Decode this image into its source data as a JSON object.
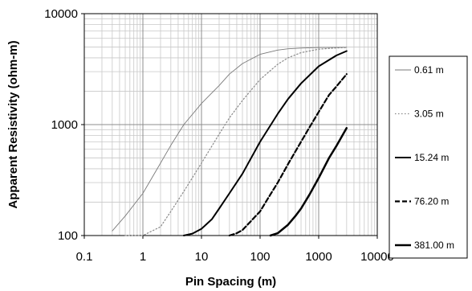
{
  "chart_data": {
    "type": "line",
    "title": "",
    "xlabel": "Pin Spacing (m)",
    "ylabel": "Apparent Resistivity (ohm-m)",
    "x_scale": "log",
    "y_scale": "log",
    "xlim": [
      0.1,
      10000
    ],
    "ylim": [
      100,
      10000
    ],
    "x_ticks": [
      "0.1",
      "1",
      "10",
      "100",
      "1000",
      "10000"
    ],
    "y_ticks": [
      "100",
      "1000",
      "10000"
    ],
    "grid": true,
    "legend_position": "right",
    "series": [
      {
        "name": "0.61 m",
        "style": "thin-solid",
        "color": "#7a7a7a",
        "x": [
          0.3,
          0.5,
          1,
          2,
          3,
          5,
          10,
          20,
          30,
          50,
          100,
          200,
          300,
          500,
          1000,
          2000,
          3000
        ],
        "y": [
          110,
          150,
          240,
          450,
          650,
          1000,
          1550,
          2250,
          2850,
          3550,
          4300,
          4700,
          4820,
          4900,
          4950,
          4970,
          4980
        ]
      },
      {
        "name": "3.05 m",
        "style": "dotted",
        "color": "#8a8a8a",
        "x": [
          0.5,
          1,
          2,
          3,
          5,
          10,
          20,
          30,
          50,
          100,
          200,
          300,
          500,
          1000,
          2000,
          3000
        ],
        "y": [
          100,
          100,
          120,
          165,
          250,
          450,
          820,
          1150,
          1650,
          2550,
          3500,
          4000,
          4450,
          4780,
          4910,
          4950
        ]
      },
      {
        "name": "15.24 m",
        "style": "solid",
        "color": "#000000",
        "x": [
          5,
          7,
          10,
          15,
          20,
          30,
          50,
          100,
          200,
          300,
          500,
          1000,
          2000,
          3000
        ],
        "y": [
          100,
          104,
          115,
          140,
          175,
          240,
          360,
          700,
          1250,
          1700,
          2350,
          3350,
          4200,
          4600
        ]
      },
      {
        "name": "76.20 m",
        "style": "dashed",
        "color": "#000000",
        "x": [
          30,
          40,
          50,
          70,
          100,
          150,
          200,
          300,
          500,
          700,
          1000,
          1500,
          2000,
          3000
        ],
        "y": [
          100,
          105,
          112,
          135,
          165,
          235,
          300,
          440,
          700,
          950,
          1300,
          1850,
          2200,
          2850
        ]
      },
      {
        "name": "381.00 m",
        "style": "thick-solid",
        "color": "#000000",
        "x": [
          150,
          200,
          300,
          400,
          500,
          700,
          1000,
          1500,
          2000,
          3000
        ],
        "y": [
          100,
          105,
          125,
          150,
          175,
          235,
          330,
          500,
          640,
          930
        ]
      }
    ]
  }
}
